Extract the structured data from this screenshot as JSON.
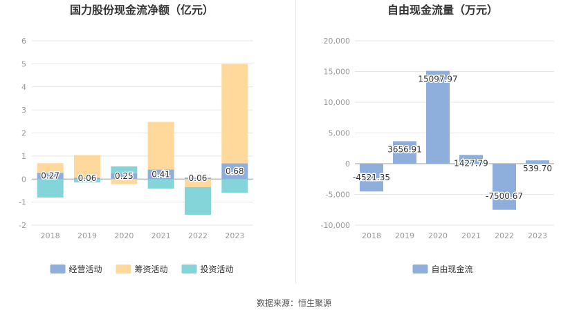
{
  "chart_data": [
    {
      "type": "bar",
      "stacked": true,
      "title": "国力股份现金流净额（亿元）",
      "categories": [
        "2018",
        "2019",
        "2020",
        "2021",
        "2022",
        "2023"
      ],
      "series": [
        {
          "name": "经营活动",
          "color": "#8eaedc",
          "values": [
            0.27,
            0.06,
            0.25,
            0.41,
            0.06,
            0.68
          ]
        },
        {
          "name": "筹资活动",
          "color": "#fed99b",
          "values": [
            0.42,
            0.98,
            -0.22,
            2.07,
            -0.35,
            4.32
          ]
        },
        {
          "name": "投资活动",
          "color": "#84d5d9",
          "values": [
            -0.8,
            -0.15,
            0.3,
            -0.42,
            -1.2,
            -0.6
          ]
        }
      ],
      "labels": [
        "0.27",
        "0.06",
        "0.25",
        "0.41",
        "0.06",
        "0.68"
      ],
      "yticks": [
        "-2",
        "-1",
        "0",
        "1",
        "2",
        "3",
        "4",
        "5",
        "6"
      ],
      "ylim": [
        -2,
        6
      ],
      "legend_position": "bottom",
      "grid": true
    },
    {
      "type": "bar",
      "title": "自由现金流量（万元）",
      "categories": [
        "2018",
        "2019",
        "2020",
        "2021",
        "2022",
        "2023"
      ],
      "series": [
        {
          "name": "自由现金流",
          "color": "#8eaedc",
          "values": [
            -4521.35,
            3656.91,
            15097.97,
            1427.79,
            -7500.67,
            539.7
          ]
        }
      ],
      "labels": [
        "-4521.35",
        "3656.91",
        "15097.97",
        "1427.79",
        "-7500.67",
        "539.70"
      ],
      "yticks": [
        "-10,000",
        "-5,000",
        "0",
        "5,000",
        "10,000",
        "15,000",
        "20,000"
      ],
      "ylim": [
        -10000,
        20000
      ],
      "legend_position": "bottom",
      "grid": true
    }
  ],
  "footer": {
    "source": "数据来源：恒生聚源"
  }
}
